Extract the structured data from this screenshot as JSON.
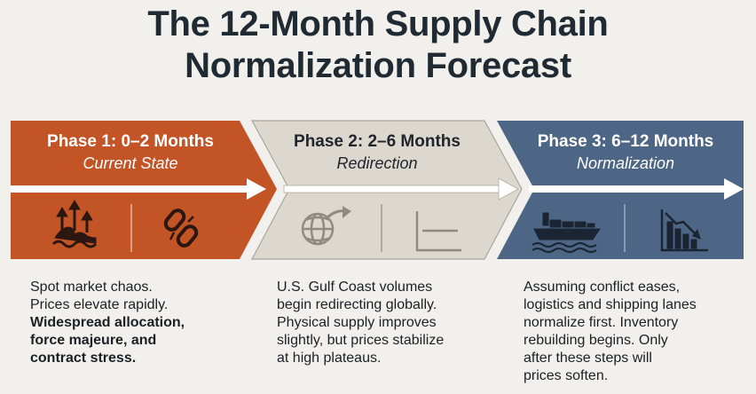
{
  "title": {
    "line1": "The 12-Month Supply Chain",
    "line2": "Normalization Forecast"
  },
  "phases": [
    {
      "title": "Phase 1: 0–2 Months",
      "subtitle": "Current State",
      "color": "#c35426",
      "icons": [
        "rising-water-arrows-icon",
        "broken-chain-icon"
      ],
      "desc_lines": [
        "Spot market chaos.",
        "Prices elevate rapidly."
      ],
      "desc_bold_lines": [
        "Widespread allocation,",
        "force majeure, and",
        "contract stress."
      ]
    },
    {
      "title": "Phase 2: 2–6 Months",
      "subtitle": "Redirection",
      "color": "#dbd7cd",
      "icons": [
        "globe-arrow-icon",
        "flat-line-chart-icon"
      ],
      "desc_lines": [
        "U.S. Gulf Coast volumes",
        "begin redirecting globally.",
        "Physical supply improves",
        "slightly, but prices stabilize",
        "at high plateaus."
      ],
      "desc_bold_lines": []
    },
    {
      "title": "Phase 3: 6–12 Months",
      "subtitle": "Normalization",
      "color": "#4c6584",
      "icons": [
        "cargo-ship-icon",
        "declining-bar-chart-icon"
      ],
      "desc_lines": [
        "Assuming conflict eases,",
        "logistics and shipping lanes",
        "normalize first. Inventory",
        "rebuilding begins. Only",
        "after these steps will",
        "prices soften."
      ],
      "desc_bold_lines": []
    }
  ]
}
